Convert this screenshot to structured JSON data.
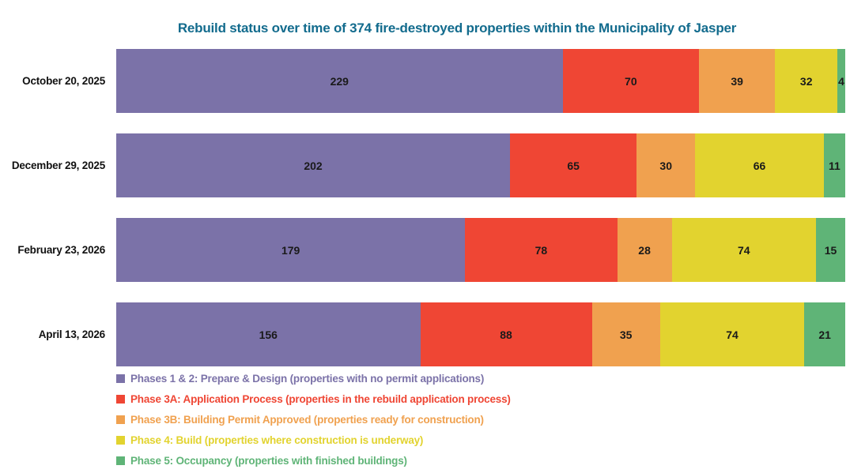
{
  "chart_data": {
    "type": "bar",
    "orientation": "horizontal-stacked",
    "title": "Rebuild status over time of 374 fire-destroyed properties within the Municipality of Jasper",
    "title_color": "#126B8D",
    "total_per_bar": 374,
    "xlim": [
      0,
      374
    ],
    "grid": false,
    "legend_position": "bottom-left",
    "categories": [
      "October 20, 2025",
      "December 29, 2025",
      "February 23, 2026",
      "April 13, 2026"
    ],
    "series": [
      {
        "name": "Phases 1 & 2: Prepare & Design (properties with no permit applications)",
        "color": "#7B72A8",
        "values": [
          229,
          202,
          179,
          156
        ]
      },
      {
        "name": "Phase 3A: Application Process (properties in the rebuild application process)",
        "color": "#EF4634",
        "values": [
          70,
          65,
          78,
          88
        ]
      },
      {
        "name": "Phase 3B: Building Permit Approved (properties ready for construction)",
        "color": "#F0A14F",
        "values": [
          39,
          30,
          28,
          35
        ]
      },
      {
        "name": "Phase 4: Build (properties where construction is underway)",
        "color": "#E2D32F",
        "values": [
          32,
          66,
          74,
          74
        ]
      },
      {
        "name": "Phase 5: Occupancy (properties with finished buildings)",
        "color": "#5FB477",
        "values": [
          4,
          11,
          15,
          21
        ]
      }
    ]
  }
}
